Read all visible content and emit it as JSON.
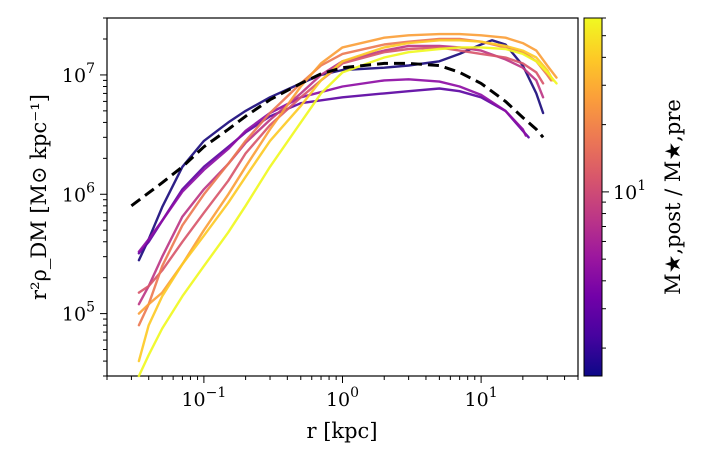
{
  "chart_data": {
    "type": "line",
    "xscale": "log",
    "yscale": "log",
    "xlim": [
      0.02,
      50
    ],
    "ylim": [
      30000,
      30000000
    ],
    "grid": false,
    "xlabel": "r [kpc]",
    "ylabel": "r²ρ_DM [M⊙ kpc⁻¹]",
    "x_ticks": [
      {
        "value": 0.1,
        "base": "10",
        "exp": "−1"
      },
      {
        "value": 1,
        "base": "10",
        "exp": "0"
      },
      {
        "value": 10,
        "base": "10",
        "exp": "1"
      }
    ],
    "y_ticks": [
      {
        "value": 100000,
        "base": "10",
        "exp": "5"
      },
      {
        "value": 1000000,
        "base": "10",
        "exp": "6"
      },
      {
        "value": 10000000,
        "base": "10",
        "exp": "7"
      }
    ],
    "colorbar": {
      "label": "M★,post / M★,pre",
      "scale": "log",
      "range": [
        1.5,
        60
      ],
      "ticks": [
        {
          "value": 10,
          "base": "10",
          "exp": "1"
        }
      ],
      "colormap": [
        "#0d0887",
        "#46039f",
        "#7201a8",
        "#9c179e",
        "#bd3786",
        "#d8576b",
        "#ed7953",
        "#fb9f3a",
        "#fdca26",
        "#f0f921"
      ]
    },
    "series": [
      {
        "color": "#1b0c7d",
        "dashed": false,
        "points": [
          [
            0.034,
            280000
          ],
          [
            0.04,
            420000
          ],
          [
            0.05,
            780000
          ],
          [
            0.07,
            1700000
          ],
          [
            0.1,
            2800000
          ],
          [
            0.15,
            4000000
          ],
          [
            0.2,
            5000000
          ],
          [
            0.3,
            6500000
          ],
          [
            0.5,
            8500000
          ],
          [
            0.7,
            10000000
          ],
          [
            1,
            11000000
          ],
          [
            2,
            11500000
          ],
          [
            3,
            12000000
          ],
          [
            5,
            13000000
          ],
          [
            7,
            15000000
          ],
          [
            10,
            18000000
          ],
          [
            12,
            19500000
          ],
          [
            15,
            18000000
          ],
          [
            20,
            12000000
          ],
          [
            25,
            7000000
          ],
          [
            28,
            4800000
          ]
        ]
      },
      {
        "color": "#5d07a3",
        "dashed": false,
        "points": [
          [
            0.034,
            320000
          ],
          [
            0.04,
            400000
          ],
          [
            0.05,
            600000
          ],
          [
            0.07,
            1100000
          ],
          [
            0.1,
            1700000
          ],
          [
            0.15,
            2500000
          ],
          [
            0.2,
            3300000
          ],
          [
            0.3,
            4500000
          ],
          [
            0.5,
            5800000
          ],
          [
            1,
            6500000
          ],
          [
            2,
            7000000
          ],
          [
            3,
            7300000
          ],
          [
            5,
            7700000
          ],
          [
            7,
            7300000
          ],
          [
            10,
            6500000
          ],
          [
            15,
            5000000
          ],
          [
            20,
            3400000
          ],
          [
            22,
            3000000
          ]
        ]
      },
      {
        "color": "#8e0ea5",
        "dashed": false,
        "points": [
          [
            0.034,
            330000
          ],
          [
            0.04,
            420000
          ],
          [
            0.05,
            600000
          ],
          [
            0.07,
            1050000
          ],
          [
            0.1,
            1600000
          ],
          [
            0.15,
            2400000
          ],
          [
            0.2,
            3400000
          ],
          [
            0.3,
            4800000
          ],
          [
            0.5,
            6500000
          ],
          [
            1,
            8000000
          ],
          [
            2,
            9000000
          ],
          [
            3,
            9200000
          ],
          [
            5,
            8800000
          ],
          [
            7,
            8000000
          ],
          [
            10,
            6800000
          ],
          [
            15,
            5000000
          ],
          [
            20,
            3500000
          ],
          [
            21,
            3100000
          ]
        ]
      },
      {
        "color": "#bd3786",
        "dashed": false,
        "points": [
          [
            0.034,
            120000
          ],
          [
            0.04,
            170000
          ],
          [
            0.05,
            300000
          ],
          [
            0.07,
            650000
          ],
          [
            0.1,
            1100000
          ],
          [
            0.15,
            1800000
          ],
          [
            0.2,
            2700000
          ],
          [
            0.3,
            4200000
          ],
          [
            0.5,
            7000000
          ],
          [
            0.7,
            10000000
          ],
          [
            1,
            13000000
          ],
          [
            2,
            16000000
          ],
          [
            3,
            17500000
          ],
          [
            5,
            17500000
          ],
          [
            7,
            17000000
          ],
          [
            10,
            16000000
          ],
          [
            15,
            13500000
          ],
          [
            20,
            11500000
          ],
          [
            25,
            9000000
          ],
          [
            28,
            6500000
          ]
        ]
      },
      {
        "color": "#d8576b",
        "dashed": false,
        "points": [
          [
            0.034,
            150000
          ],
          [
            0.04,
            170000
          ],
          [
            0.05,
            230000
          ],
          [
            0.07,
            400000
          ],
          [
            0.1,
            700000
          ],
          [
            0.15,
            1300000
          ],
          [
            0.2,
            2200000
          ],
          [
            0.3,
            3800000
          ],
          [
            0.5,
            6500000
          ],
          [
            0.7,
            9000000
          ],
          [
            1,
            12500000
          ],
          [
            2,
            15500000
          ],
          [
            3,
            16500000
          ],
          [
            5,
            17000000
          ],
          [
            7,
            16000000
          ],
          [
            10,
            15000000
          ],
          [
            15,
            14000000
          ],
          [
            20,
            12500000
          ],
          [
            25,
            10500000
          ],
          [
            28,
            8500000
          ]
        ]
      },
      {
        "color": "#ed7953",
        "dashed": false,
        "points": [
          [
            0.034,
            80000
          ],
          [
            0.04,
            120000
          ],
          [
            0.05,
            250000
          ],
          [
            0.07,
            550000
          ],
          [
            0.1,
            1000000
          ],
          [
            0.15,
            1800000
          ],
          [
            0.2,
            2800000
          ],
          [
            0.3,
            4800000
          ],
          [
            0.5,
            8500000
          ],
          [
            0.7,
            12000000
          ],
          [
            1,
            15000000
          ],
          [
            2,
            18000000
          ],
          [
            3,
            19000000
          ],
          [
            5,
            20000000
          ],
          [
            7,
            20000000
          ],
          [
            10,
            19000000
          ],
          [
            15,
            17000000
          ],
          [
            20,
            15500000
          ],
          [
            25,
            13000000
          ],
          [
            30,
            10000000
          ],
          [
            32,
            9000000
          ]
        ]
      },
      {
        "color": "#fb9f3a",
        "dashed": false,
        "points": [
          [
            0.034,
            100000
          ],
          [
            0.04,
            120000
          ],
          [
            0.05,
            150000
          ],
          [
            0.07,
            260000
          ],
          [
            0.1,
            500000
          ],
          [
            0.15,
            1000000
          ],
          [
            0.2,
            1700000
          ],
          [
            0.3,
            3500000
          ],
          [
            0.5,
            8000000
          ],
          [
            0.7,
            12500000
          ],
          [
            1,
            17000000
          ],
          [
            2,
            20500000
          ],
          [
            3,
            21500000
          ],
          [
            5,
            22000000
          ],
          [
            7,
            22000000
          ],
          [
            10,
            21500000
          ],
          [
            15,
            20500000
          ],
          [
            20,
            18500000
          ],
          [
            25,
            16000000
          ],
          [
            30,
            12000000
          ],
          [
            35,
            9500000
          ]
        ]
      },
      {
        "color": "#fdca26",
        "dashed": false,
        "points": [
          [
            0.034,
            40000
          ],
          [
            0.04,
            80000
          ],
          [
            0.05,
            140000
          ],
          [
            0.07,
            260000
          ],
          [
            0.1,
            450000
          ],
          [
            0.15,
            850000
          ],
          [
            0.2,
            1400000
          ],
          [
            0.3,
            2800000
          ],
          [
            0.5,
            5500000
          ],
          [
            0.7,
            9000000
          ],
          [
            1,
            13000000
          ],
          [
            2,
            17000000
          ],
          [
            3,
            18500000
          ],
          [
            5,
            19500000
          ],
          [
            7,
            19500000
          ],
          [
            10,
            19000000
          ],
          [
            15,
            17500000
          ],
          [
            20,
            16000000
          ],
          [
            25,
            14000000
          ],
          [
            30,
            11000000
          ],
          [
            33,
            9000000
          ]
        ]
      },
      {
        "color": "#f0f921",
        "dashed": false,
        "points": [
          [
            0.034,
            30000
          ],
          [
            0.04,
            45000
          ],
          [
            0.05,
            75000
          ],
          [
            0.07,
            140000
          ],
          [
            0.1,
            250000
          ],
          [
            0.15,
            480000
          ],
          [
            0.2,
            800000
          ],
          [
            0.3,
            1700000
          ],
          [
            0.5,
            4000000
          ],
          [
            0.7,
            7000000
          ],
          [
            1,
            10500000
          ],
          [
            2,
            14000000
          ],
          [
            3,
            15500000
          ],
          [
            5,
            16500000
          ],
          [
            7,
            17000000
          ],
          [
            10,
            17000000
          ],
          [
            15,
            16500000
          ],
          [
            20,
            15000000
          ],
          [
            25,
            13000000
          ],
          [
            30,
            10500000
          ],
          [
            35,
            8500000
          ]
        ]
      },
      {
        "color": "#000000",
        "dashed": true,
        "points": [
          [
            0.03,
            800000
          ],
          [
            0.05,
            1250000
          ],
          [
            0.07,
            1700000
          ],
          [
            0.1,
            2500000
          ],
          [
            0.15,
            3500000
          ],
          [
            0.2,
            4500000
          ],
          [
            0.3,
            6200000
          ],
          [
            0.5,
            8500000
          ],
          [
            0.7,
            10200000
          ],
          [
            1,
            11500000
          ],
          [
            2,
            12500000
          ],
          [
            3,
            12500000
          ],
          [
            5,
            12000000
          ],
          [
            7,
            10500000
          ],
          [
            10,
            8500000
          ],
          [
            15,
            6000000
          ],
          [
            20,
            4400000
          ],
          [
            25,
            3500000
          ],
          [
            28,
            3000000
          ]
        ]
      }
    ]
  }
}
